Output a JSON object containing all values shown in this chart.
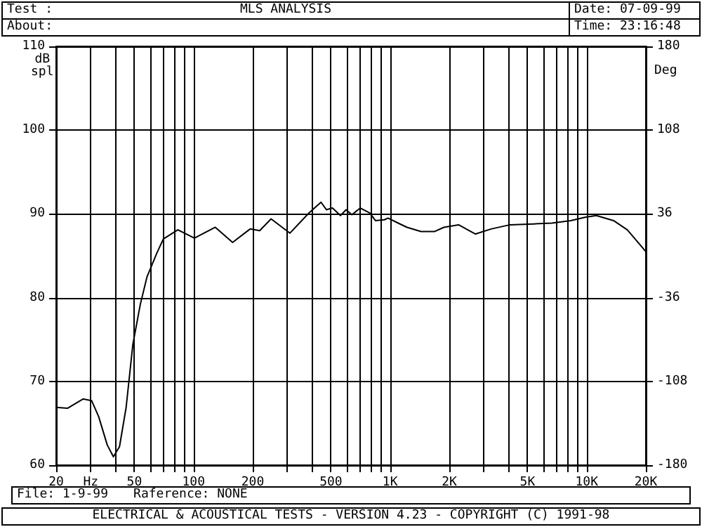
{
  "chart_data": {
    "type": "line",
    "title": "MLS ANALYSIS",
    "annotations": [
      "Test :",
      "About:",
      "Date: 07-09-99",
      "Time: 23:16:48",
      "File: 1-9-99",
      "Raference: NONE",
      "ELECTRICAL & ACOUSTICAL TESTS - VERSION 4.23 - COPYRIGHT (C) 1991-98"
    ],
    "ylabel": "dB spl",
    "y2label": "Deg",
    "series": [
      {
        "color": "#000000",
        "x": [
          20,
          22.9,
          27.4,
          30.3,
          32.9,
          36.4,
          39.1,
          42,
          45.4,
          49.1,
          53.6,
          58,
          65,
          70.2,
          83.1,
          101,
          129,
          158,
          194,
          217,
          248,
          309,
          386,
          445,
          474,
          509,
          559,
          597,
          639,
          705,
          788,
          842,
          935,
          976,
          1099,
          1219,
          1436,
          1687,
          1878,
          2230,
          2718,
          3264,
          4080,
          5360,
          6665,
          8300,
          9800,
          11200,
          13700,
          16100,
          18400,
          20000
        ],
        "values": [
          66.9,
          66.8,
          67.9,
          67.7,
          65.8,
          62.4,
          61,
          62.2,
          66.9,
          74.4,
          79.2,
          82.5,
          85.3,
          87,
          88.1,
          87.1,
          88.4,
          86.6,
          88.2,
          88,
          89.4,
          87.7,
          90.1,
          91.4,
          90.5,
          90.7,
          89.8,
          90.5,
          89.9,
          90.7,
          90.1,
          89.2,
          89.3,
          89.5,
          88.9,
          88.4,
          87.9,
          87.9,
          88.4,
          88.7,
          87.6,
          88.2,
          88.7,
          88.8,
          88.9,
          89.2,
          89.6,
          89.8,
          89.2,
          88.1,
          86.5,
          85.5
        ]
      }
    ],
    "log": "x",
    "xlim": [
      20,
      20000
    ],
    "xticks": [
      20,
      {
        "value": 30,
        "label": "Hz"
      },
      {
        "value": 40,
        "label": null
      },
      50,
      {
        "value": 60,
        "label": null
      },
      {
        "value": 70,
        "label": null
      },
      {
        "value": 80,
        "label": null
      },
      {
        "value": 90,
        "label": null
      },
      100,
      200,
      {
        "value": 300,
        "label": null
      },
      {
        "value": 400,
        "label": null
      },
      500,
      {
        "value": 600,
        "label": null
      },
      {
        "value": 700,
        "label": null
      },
      {
        "value": 800,
        "label": null
      },
      {
        "value": 900,
        "label": null
      },
      {
        "value": 1000,
        "label": "1K"
      },
      {
        "value": 2000,
        "label": "2K"
      },
      {
        "value": 3000,
        "label": null
      },
      {
        "value": 4000,
        "label": null
      },
      {
        "value": 5000,
        "label": "5K"
      },
      {
        "value": 6000,
        "label": null
      },
      {
        "value": 7000,
        "label": null
      },
      {
        "value": 8000,
        "label": null
      },
      {
        "value": 9000,
        "label": null
      },
      {
        "value": 10000,
        "label": "10K"
      },
      {
        "value": 20000,
        "label": "20K"
      }
    ],
    "ylim": [
      60,
      110
    ],
    "yticks": [
      60,
      70,
      80,
      90,
      100,
      110
    ],
    "y2lim": [
      -180,
      180
    ],
    "y2ticks": [
      -180,
      -108,
      -36,
      36,
      108,
      180
    ],
    "grid": "xy",
    "marker": "none",
    "line_style": "solid"
  }
}
